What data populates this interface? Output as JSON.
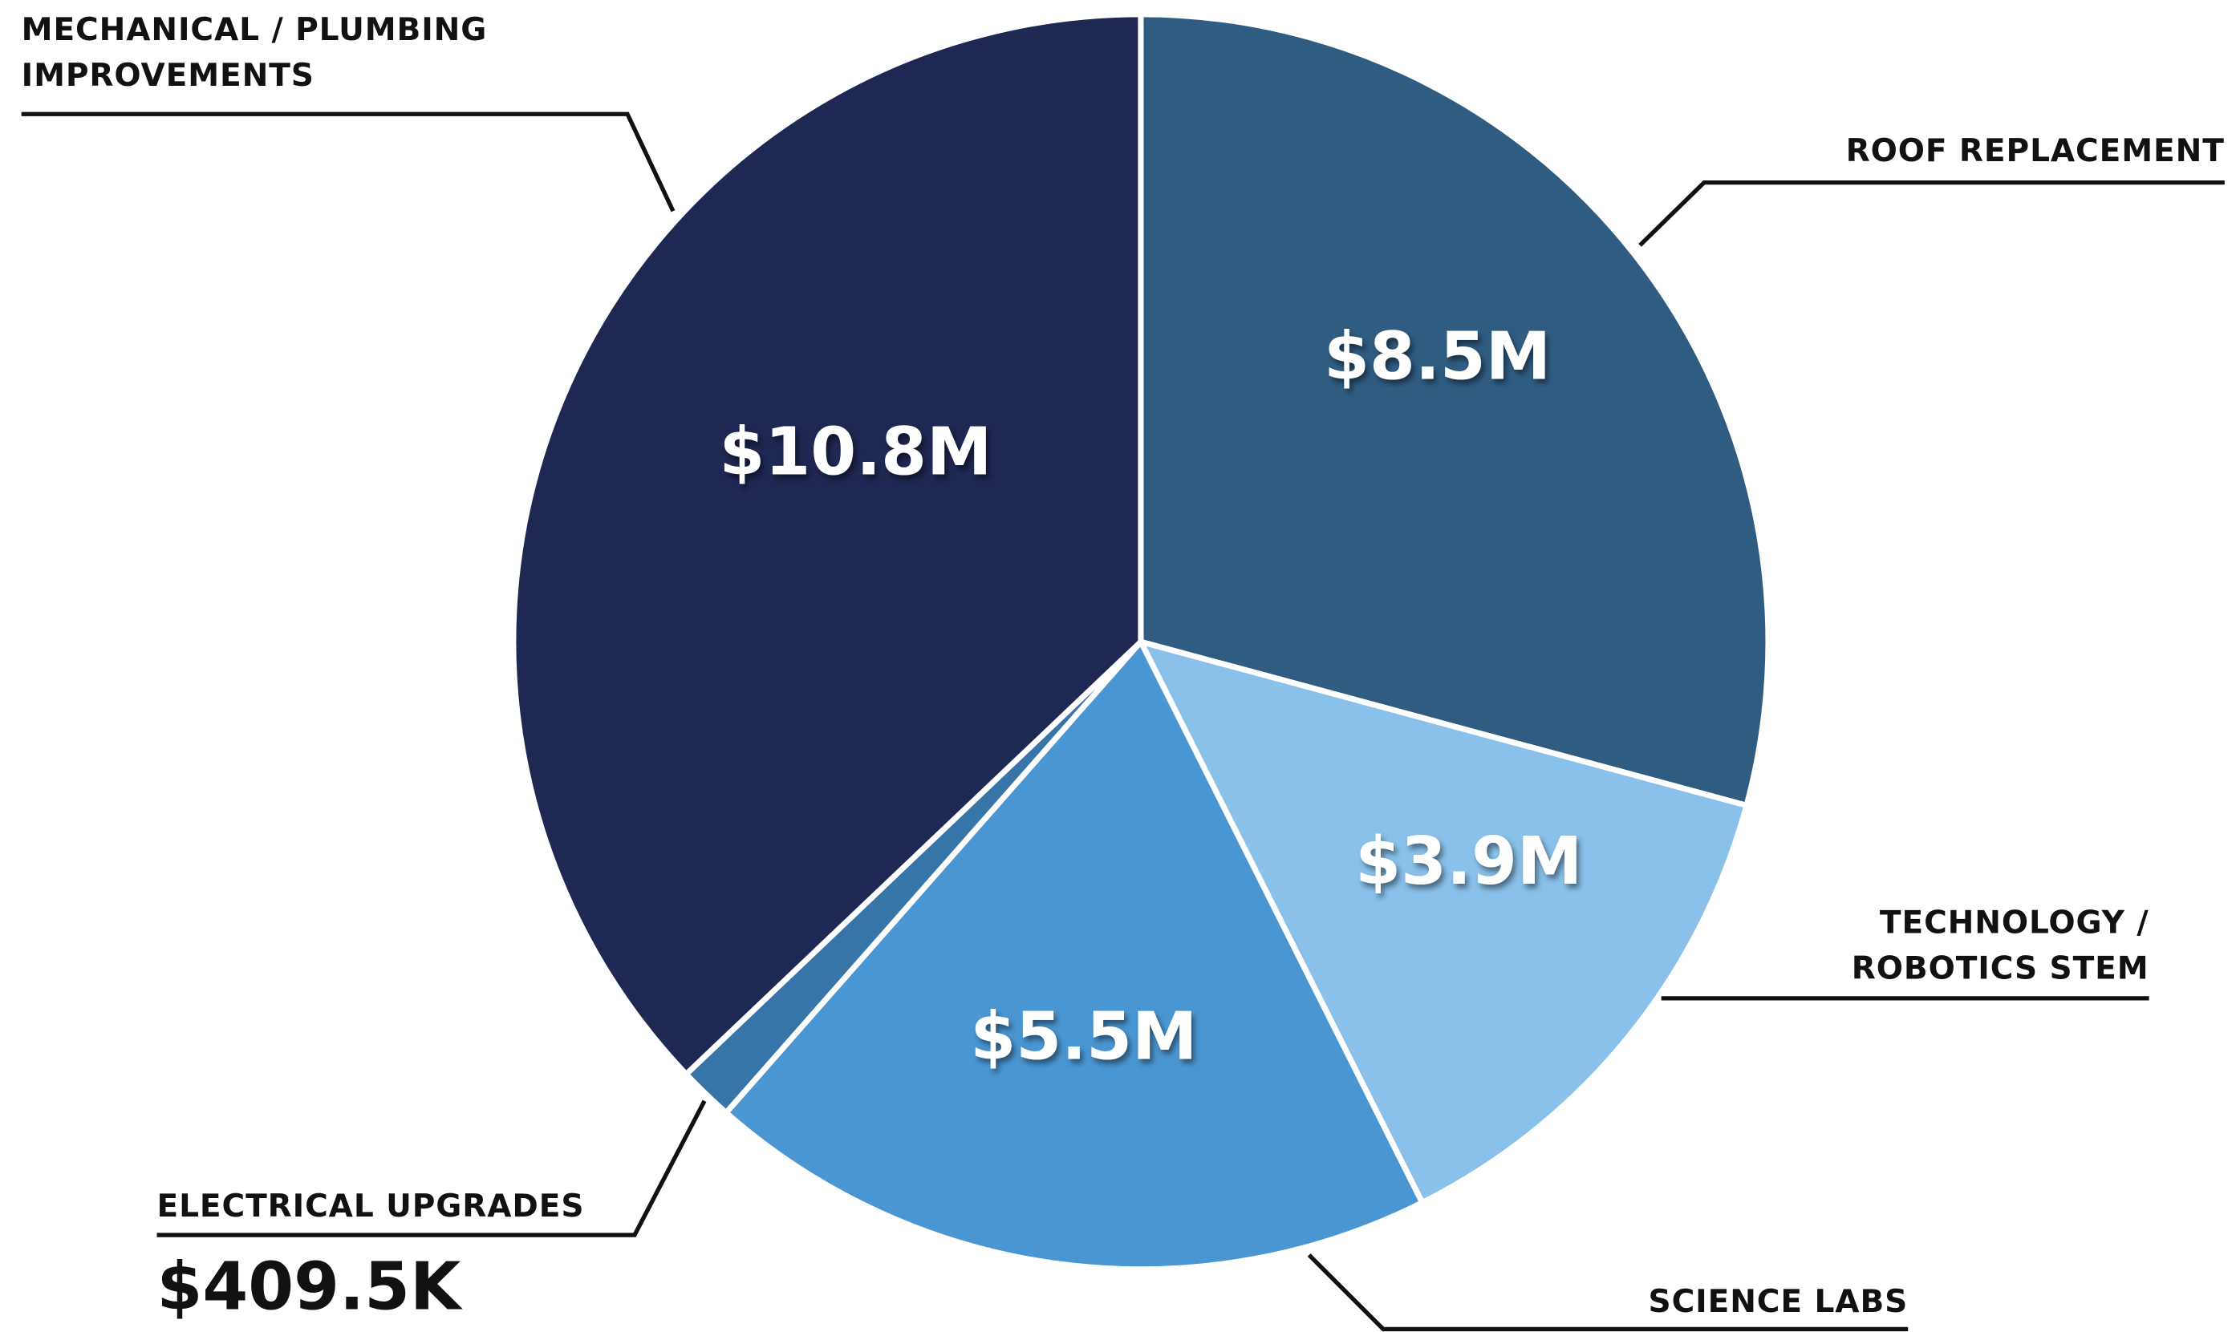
{
  "chart_data": {
    "type": "pie",
    "categories": [
      "ROOF REPLACEMENT",
      "TECHNOLOGY / ROBOTICS STEM",
      "SCIENCE LABS",
      "ELECTRICAL UPGRADES",
      "MECHANICAL / PLUMBING IMPROVEMENTS"
    ],
    "values": [
      8500000,
      3900000,
      5500000,
      409500,
      10800000
    ],
    "value_labels": [
      "$8.5M",
      "$3.9M",
      "$5.5M",
      "$409.5K",
      "$10.8M"
    ],
    "colors": [
      "#305c82",
      "#89c1ea",
      "#4a96d2",
      "#3774a8",
      "#1f2753"
    ]
  }
}
